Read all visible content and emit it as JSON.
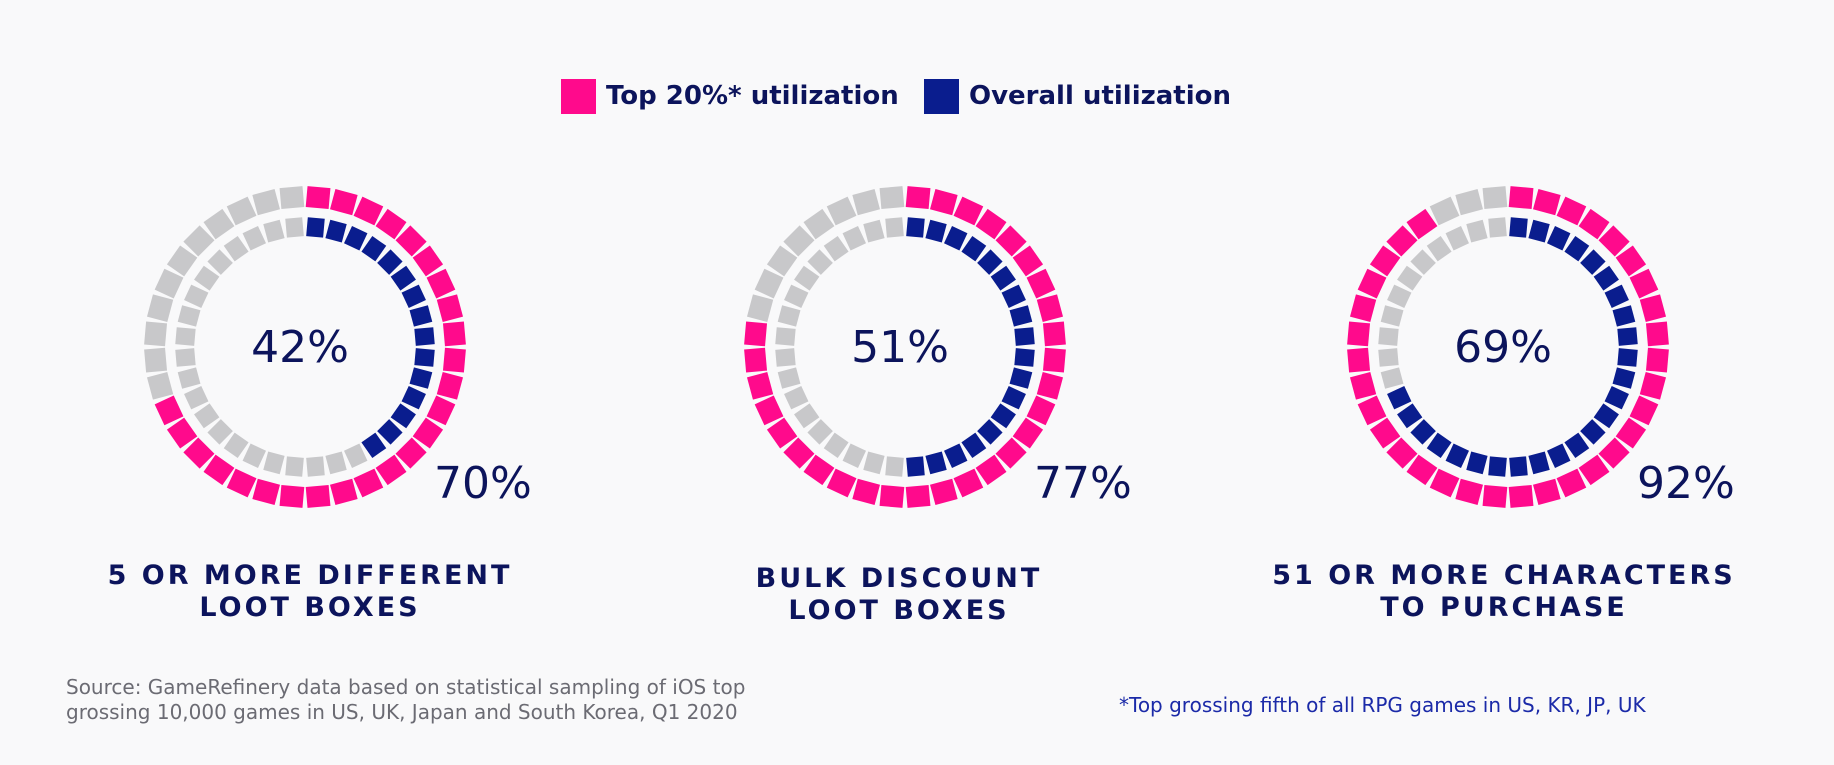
{
  "legend": {
    "top20_label": "Top 20%* utilization",
    "overall_label": "Overall utilization"
  },
  "colors": {
    "top20": "#ff0a8c",
    "overall": "#0a1d8e",
    "empty": "#c8c8ca",
    "text": "#0c145c"
  },
  "chart_data": [
    {
      "type": "radial-segment",
      "title": "5 OR MORE DIFFERENT LOOT BOXES",
      "caption_lines": [
        "5 OR MORE DIFFERENT",
        "LOOT BOXES"
      ],
      "series": [
        {
          "name": "Top 20%* utilization",
          "value": 70,
          "label": "70%"
        },
        {
          "name": "Overall utilization",
          "value": 42,
          "label": "42%"
        }
      ]
    },
    {
      "type": "radial-segment",
      "title": "BULK DISCOUNT LOOT BOXES",
      "caption_lines": [
        "BULK DISCOUNT",
        "LOOT BOXES"
      ],
      "series": [
        {
          "name": "Top 20%* utilization",
          "value": 77,
          "label": "77%"
        },
        {
          "name": "Overall utilization",
          "value": 51,
          "label": "51%"
        }
      ]
    },
    {
      "type": "radial-segment",
      "title": "51 OR MORE CHARACTERS TO PURCHASE",
      "caption_lines": [
        "51 OR MORE CHARACTERS",
        "TO PURCHASE"
      ],
      "series": [
        {
          "name": "Top 20%* utilization",
          "value": 92,
          "label": "92%"
        },
        {
          "name": "Overall utilization",
          "value": 69,
          "label": "69%"
        }
      ]
    }
  ],
  "footer": {
    "source": "Source: GameRefinery data based on statistical sampling of iOS top grossing 10,000 games in US, UK, Japan and South Korea, Q1 2020",
    "footnote": "*Top grossing fifth of all RPG games in US, KR, JP, UK"
  }
}
